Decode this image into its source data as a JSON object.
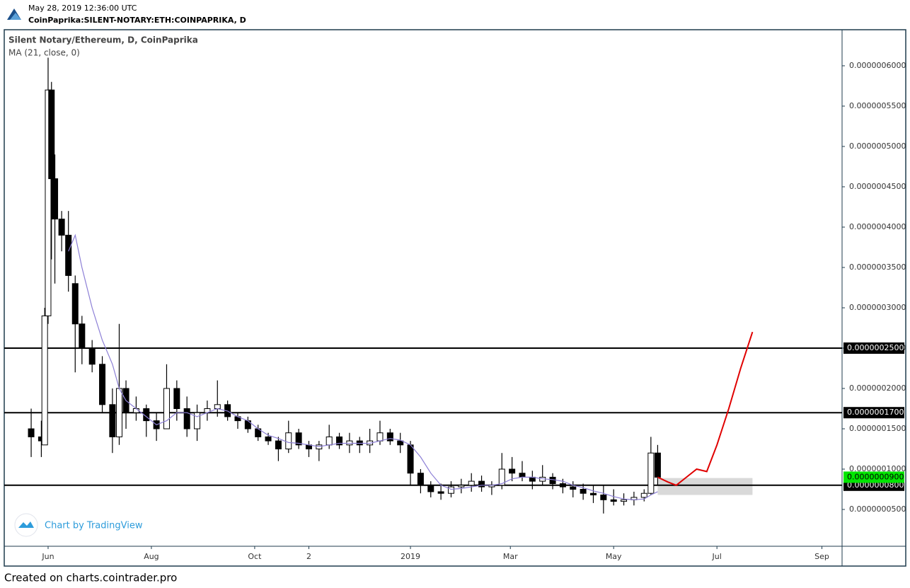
{
  "header": {
    "timestamp": "May 28, 2019 12:36:00 UTC",
    "symbol": "CoinPaprika:SILENT-NOTARY:ETH:COINPAPRIKA, D"
  },
  "footer": "Created on charts.cointrader.pro",
  "chart_data": {
    "type": "candlestick",
    "title": "Silent Notary/Ethereum, D, CoinPaprika",
    "indicator": {
      "name": "MA (21, close, 0)",
      "color": "#8c7fd6",
      "values": [
        null,
        null,
        null,
        null,
        null,
        null,
        null,
        3.7e-07,
        3.9e-07,
        3.5e-07,
        3e-07,
        2.6e-07,
        2.3e-07,
        2e-07,
        1.85e-07,
        1.75e-07,
        1.65e-07,
        1.55e-07,
        1.6e-07,
        1.7e-07,
        1.7e-07,
        1.65e-07,
        1.7e-07,
        1.75e-07,
        1.72e-07,
        1.65e-07,
        1.6e-07,
        1.5e-07,
        1.42e-07,
        1.38e-07,
        1.33e-07,
        1.32e-07,
        1.3e-07,
        1.28e-07,
        1.3e-07,
        1.32e-07,
        1.32e-07,
        1.32e-07,
        1.32e-07,
        1.35e-07,
        1.38e-07,
        1.36e-07,
        1.3e-07,
        1.15e-07,
        9.5e-08,
        8e-08,
        7.5e-08,
        7.6e-08,
        7.8e-08,
        8e-08,
        8e-08,
        8.2e-08,
        8.8e-08,
        9e-08,
        9e-08,
        8.8e-08,
        8.7e-08,
        8.5e-08,
        8e-08,
        7.7e-08,
        7.3e-08,
        7e-08,
        6.6e-08,
        6.3e-08,
        6.2e-08,
        6.3e-08,
        6.8e-08,
        7.2e-08
      ]
    },
    "x": [
      -10,
      -4,
      -2,
      0,
      2,
      4,
      8,
      12,
      16,
      20,
      26,
      32,
      38,
      42,
      46,
      52,
      58,
      64,
      70,
      76,
      82,
      88,
      94,
      100,
      106,
      112,
      118,
      124,
      130,
      136,
      142,
      148,
      154,
      160,
      166,
      172,
      178,
      184,
      190,
      196,
      202,
      208,
      214,
      220,
      226,
      232,
      238,
      244,
      250,
      256,
      262,
      268,
      274,
      280,
      286,
      292,
      298,
      304,
      310,
      316,
      322,
      328,
      334,
      340,
      346,
      352,
      356,
      360
    ],
    "open": [
      1.5e-07,
      1.4e-07,
      1.3e-07,
      2.9e-07,
      5.7e-07,
      4.6e-07,
      4.1e-07,
      3.9e-07,
      3.3e-07,
      2.8e-07,
      2.5e-07,
      2.3e-07,
      1.8e-07,
      1.4e-07,
      2e-07,
      1.7e-07,
      1.75e-07,
      1.6e-07,
      1.5e-07,
      2e-07,
      1.75e-07,
      1.5e-07,
      1.7e-07,
      1.75e-07,
      1.8e-07,
      1.65e-07,
      1.6e-07,
      1.5e-07,
      1.4e-07,
      1.35e-07,
      1.25e-07,
      1.45e-07,
      1.3e-07,
      1.25e-07,
      1.3e-07,
      1.4e-07,
      1.3e-07,
      1.35e-07,
      1.3e-07,
      1.35e-07,
      1.45e-07,
      1.35e-07,
      1.3e-07,
      9.5e-08,
      8e-08,
      7.2e-08,
      7e-08,
      7.8e-08,
      8e-08,
      8.5e-08,
      7.8e-08,
      8e-08,
      1e-07,
      9.5e-08,
      9e-08,
      8.5e-08,
      9e-08,
      8.2e-08,
      7.8e-08,
      7.5e-08,
      7e-08,
      6.8e-08,
      6.2e-08,
      6e-08,
      6.2e-08,
      6.5e-08,
      7e-08,
      1.2e-07
    ],
    "high": [
      1.75e-07,
      1.6e-07,
      3e-07,
      6.1e-07,
      5.8e-07,
      4.9e-07,
      4.2e-07,
      4.2e-07,
      3.4e-07,
      2.9e-07,
      2.6e-07,
      2.4e-07,
      2e-07,
      2.8e-07,
      2.1e-07,
      1.9e-07,
      1.8e-07,
      1.7e-07,
      2.3e-07,
      2.1e-07,
      1.9e-07,
      1.8e-07,
      1.85e-07,
      2.1e-07,
      1.85e-07,
      1.7e-07,
      1.65e-07,
      1.55e-07,
      1.45e-07,
      1.4e-07,
      1.6e-07,
      1.5e-07,
      1.35e-07,
      1.35e-07,
      1.55e-07,
      1.45e-07,
      1.45e-07,
      1.4e-07,
      1.5e-07,
      1.6e-07,
      1.5e-07,
      1.45e-07,
      1.35e-07,
      1e-07,
      8.5e-08,
      8.2e-08,
      8.5e-08,
      8.8e-08,
      9.5e-08,
      9.2e-08,
      8.5e-08,
      1.2e-07,
      1.15e-07,
      1.1e-07,
      9.8e-08,
      1.05e-07,
      9.5e-08,
      8.8e-08,
      8.5e-08,
      8.2e-08,
      8e-08,
      8e-08,
      7.5e-08,
      7e-08,
      7.2e-08,
      7.5e-08,
      1.4e-07,
      1.3e-07
    ],
    "low": [
      1.15e-07,
      1.15e-07,
      1.3e-07,
      2.8e-07,
      3.6e-07,
      3.3e-07,
      3.7e-07,
      3.2e-07,
      2.2e-07,
      2.3e-07,
      2.2e-07,
      1.7e-07,
      1.2e-07,
      1.3e-07,
      1.5e-07,
      1.6e-07,
      1.4e-07,
      1.35e-07,
      1.5e-07,
      1.6e-07,
      1.4e-07,
      1.35e-07,
      1.6e-07,
      1.65e-07,
      1.6e-07,
      1.5e-07,
      1.45e-07,
      1.35e-07,
      1.3e-07,
      1.1e-07,
      1.2e-07,
      1.25e-07,
      1.15e-07,
      1.1e-07,
      1.25e-07,
      1.25e-07,
      1.2e-07,
      1.2e-07,
      1.2e-07,
      1.3e-07,
      1.3e-07,
      1.2e-07,
      8e-08,
      7e-08,
      6.5e-08,
      6.2e-08,
      6.5e-08,
      7e-08,
      7.2e-08,
      7.2e-08,
      6.8e-08,
      7.5e-08,
      8.5e-08,
      8.5e-08,
      7.5e-08,
      8e-08,
      7.5e-08,
      7e-08,
      6.5e-08,
      6.2e-08,
      5.8e-08,
      4.5e-08,
      5.5e-08,
      5.5e-08,
      5.5e-08,
      6e-08,
      6.8e-08,
      8e-08
    ],
    "close": [
      1.4e-07,
      1.35e-07,
      2.9e-07,
      5.7e-07,
      4.6e-07,
      4.1e-07,
      3.9e-07,
      3.4e-07,
      2.8e-07,
      2.5e-07,
      2.3e-07,
      1.8e-07,
      1.4e-07,
      2e-07,
      1.7e-07,
      1.75e-07,
      1.6e-07,
      1.5e-07,
      2e-07,
      1.75e-07,
      1.5e-07,
      1.7e-07,
      1.75e-07,
      1.8e-07,
      1.65e-07,
      1.6e-07,
      1.5e-07,
      1.4e-07,
      1.35e-07,
      1.25e-07,
      1.45e-07,
      1.3e-07,
      1.25e-07,
      1.3e-07,
      1.4e-07,
      1.3e-07,
      1.35e-07,
      1.3e-07,
      1.35e-07,
      1.45e-07,
      1.35e-07,
      1.3e-07,
      9.5e-08,
      8e-08,
      7.2e-08,
      7e-08,
      7.8e-08,
      8e-08,
      8.5e-08,
      7.8e-08,
      8e-08,
      1e-07,
      9.5e-08,
      9e-08,
      8.5e-08,
      9e-08,
      8.2e-08,
      7.8e-08,
      7.5e-08,
      7e-08,
      6.8e-08,
      6.2e-08,
      6e-08,
      6.2e-08,
      6.5e-08,
      7e-08,
      1.2e-07,
      9e-08
    ],
    "hlines": [
      {
        "value": 2.5e-07,
        "label": "0.0000002500"
      },
      {
        "value": 1.7e-07,
        "label": "0.0000001700"
      },
      {
        "value": 8e-08,
        "label": "0.0000000800"
      }
    ],
    "last_price": {
      "value": 9e-08,
      "label": "0.0000000900",
      "color": "#00e600"
    },
    "projection": {
      "color": "#e00000",
      "x": [
        360,
        366,
        371,
        377,
        383,
        389,
        395,
        402,
        409,
        416
      ],
      "values": [
        9e-08,
        8.4e-08,
        8e-08,
        9e-08,
        1e-07,
        9.7e-08,
        1.3e-07,
        1.75e-07,
        2.25e-07,
        2.7e-07
      ]
    },
    "zone": {
      "x0": 360,
      "x1": 416,
      "low": 6.8e-08,
      "high": 8.9e-08,
      "color": "#d9d9d9"
    },
    "watermark": "Chart by TradingView",
    "xlim": [
      -25.9,
      468.9
    ],
    "xticks": [
      {
        "value": 0,
        "label": "Jun"
      },
      {
        "value": 61,
        "label": "Aug"
      },
      {
        "value": 122,
        "label": "Oct"
      },
      {
        "value": 154,
        "label": "2"
      },
      {
        "value": 214,
        "label": "2019"
      },
      {
        "value": 273,
        "label": "Mar"
      },
      {
        "value": 334,
        "label": "May"
      },
      {
        "value": 395,
        "label": "Jul"
      },
      {
        "value": 457,
        "label": "Sep"
      }
    ],
    "ylim": [
      4.4e-09,
      6.447e-07
    ],
    "yticks": [
      {
        "value": 5e-08,
        "label": "0.0000000500"
      },
      {
        "value": 1e-07,
        "label": "0.0000001000"
      },
      {
        "value": 1.5e-07,
        "label": "0.0000001500"
      },
      {
        "value": 2e-07,
        "label": "0.0000002000"
      },
      {
        "value": 2.5e-07,
        "label": "0.0000002500"
      },
      {
        "value": 3e-07,
        "label": "0.0000003000"
      },
      {
        "value": 3.5e-07,
        "label": "0.0000003500"
      },
      {
        "value": 4e-07,
        "label": "0.0000004000"
      },
      {
        "value": 4.5e-07,
        "label": "0.0000004500"
      },
      {
        "value": 5e-07,
        "label": "0.0000005000"
      },
      {
        "value": 5.5e-07,
        "label": "0.0000005500"
      },
      {
        "value": 6e-07,
        "label": "0.0000006000"
      }
    ]
  }
}
